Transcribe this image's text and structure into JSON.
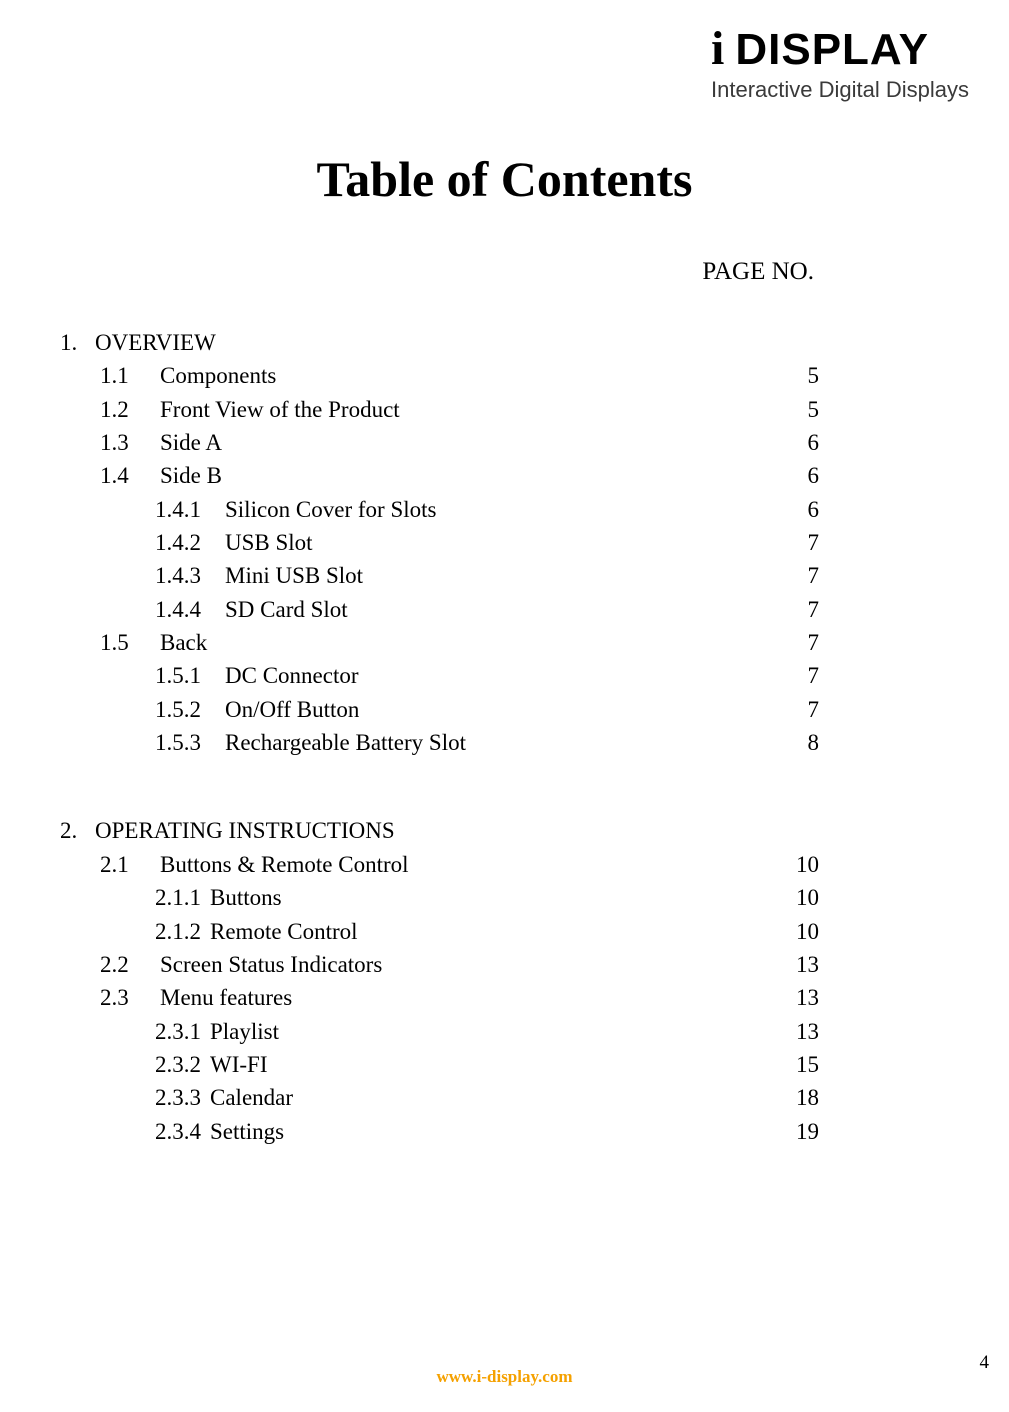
{
  "logo": {
    "main_i": "i",
    "main_rest": "DISPLAY",
    "sub": "Interactive Digital Displays"
  },
  "title": "Table of Contents",
  "page_no_label": "PAGE NO.",
  "footer": {
    "url": "www.i-display.com",
    "page_number": "4"
  },
  "colors": {
    "text": "#000000",
    "footer_url": "#f5a100",
    "background": "#ffffff"
  },
  "typography": {
    "body_family": "Times New Roman",
    "title_size_pt": 38,
    "body_size_pt": 17,
    "pageno_label_size_pt": 19
  },
  "chapters": [
    {
      "num": "1.",
      "title": "OVERVIEW",
      "sections": [
        {
          "num": "1.1",
          "title": "Components",
          "page": "5",
          "subs": []
        },
        {
          "num": "1.2",
          "title": "Front View of the Product",
          "page": "5",
          "subs": []
        },
        {
          "num": "1.3",
          "title": "Side A",
          "page": "6",
          "subs": []
        },
        {
          "num": "1.4",
          "title": "Side B",
          "page": "6",
          "subs": [
            {
              "num": "1.4.1",
              "title": "Silicon Cover for Slots",
              "page": "6"
            },
            {
              "num": "1.4.2",
              "title": "USB Slot",
              "page": "7"
            },
            {
              "num": "1.4.3",
              "title": "Mini USB Slot",
              "page": "7"
            },
            {
              "num": "1.4.4",
              "title": "SD Card Slot",
              "page": "7"
            }
          ]
        },
        {
          "num": "1.5",
          "title": "Back",
          "page": "7",
          "subs": [
            {
              "num": "1.5.1",
              "title": "DC Connector",
              "page": "7"
            },
            {
              "num": "1.5.2",
              "title": "On/Off Button",
              "page": "7"
            },
            {
              "num": "1.5.3",
              "title": "Rechargeable Battery Slot",
              "page": "8"
            }
          ]
        }
      ]
    },
    {
      "num": "2.",
      "title": "OPERATING INSTRUCTIONS",
      "sections": [
        {
          "num": "2.1",
          "title": "Buttons & Remote Control",
          "page": "10",
          "subs": [
            {
              "num": "2.1.1",
              "title": "Buttons",
              "page": "10",
              "tight": true
            },
            {
              "num": "2.1.2",
              "title": "Remote Control",
              "page": "10",
              "tight": true
            }
          ]
        },
        {
          "num": "2.2",
          "title": "Screen Status Indicators",
          "page": "13",
          "subs": []
        },
        {
          "num": "2.3",
          "title": "Menu features",
          "page": "13",
          "subs": [
            {
              "num": "2.3.1",
              "title": "Playlist",
              "page": "13",
              "tight": true
            },
            {
              "num": "2.3.2",
              "title": "WI-FI",
              "page": "15",
              "tight": true
            },
            {
              "num": "2.3.3",
              "title": "Calendar",
              "page": "18",
              "tight": true
            },
            {
              "num": "2.3.4",
              "title": "Settings",
              "page": "19",
              "tight": true
            }
          ]
        }
      ]
    }
  ]
}
